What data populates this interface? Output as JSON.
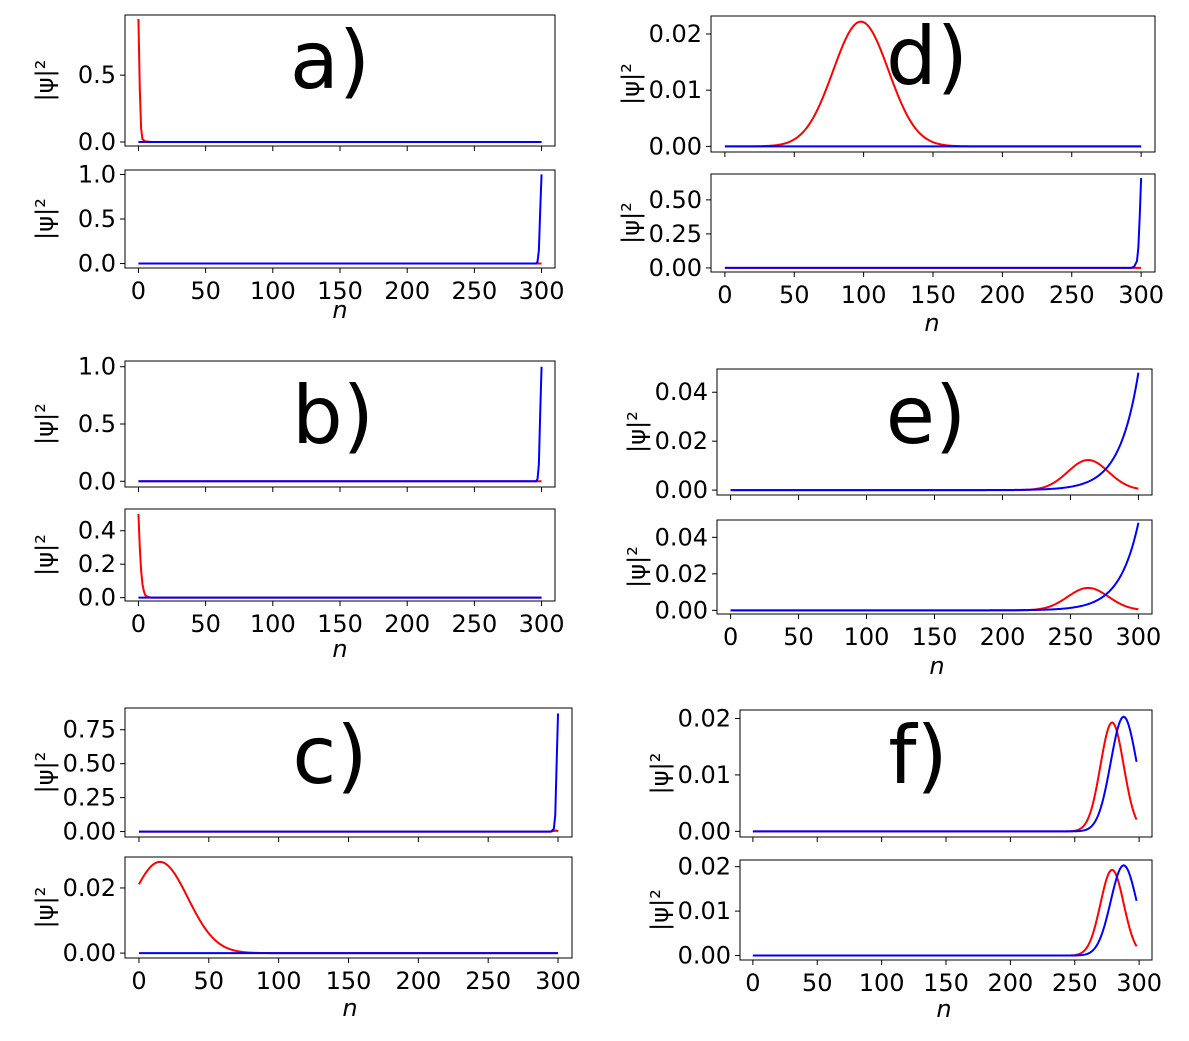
{
  "colors": {
    "red": "#ff0000",
    "blue": "#0000ff",
    "axis": "#000000"
  },
  "ylabel": "|ψ|²",
  "xlabel": "n",
  "chart_data": [
    {
      "type": "line",
      "panel": "a)",
      "subplots": [
        {
          "ylim": [
            -0.03,
            0.95
          ],
          "yticks": [
            "0.0",
            "0.5"
          ],
          "yticks_values": [
            0,
            0.5
          ],
          "xticks": [],
          "series": [
            {
              "name": "red",
              "color": "#ff0000",
              "points": [
                [
                  0,
                  0.92
                ],
                [
                  1,
                  0.4
                ],
                [
                  2,
                  0.1
                ],
                [
                  3,
                  0.02
                ],
                [
                  5,
                  0.005
                ],
                [
                  10,
                  0
                ],
                [
                  300,
                  0
                ]
              ]
            },
            {
              "name": "blue",
              "color": "#0000ff",
              "points": [
                [
                  0,
                  0
                ],
                [
                  300,
                  0
                ]
              ]
            }
          ]
        },
        {
          "ylim": [
            -0.05,
            1.05
          ],
          "yticks": [
            "0.0",
            "0.5",
            "1.0"
          ],
          "yticks_values": [
            0,
            0.5,
            1.0
          ],
          "xticks": [
            "0",
            "50",
            "100",
            "150",
            "200",
            "250",
            "300"
          ],
          "xticks_values": [
            0,
            50,
            100,
            150,
            200,
            250,
            300
          ],
          "series": [
            {
              "name": "red",
              "color": "#ff0000",
              "points": [
                [
                  0,
                  0
                ],
                [
                  300,
                  0
                ]
              ]
            },
            {
              "name": "blue",
              "color": "#0000ff",
              "points": [
                [
                  0,
                  0
                ],
                [
                  296,
                  0
                ],
                [
                  297,
                  0.02
                ],
                [
                  298,
                  0.15
                ],
                [
                  299,
                  0.6
                ],
                [
                  300,
                  1.0
                ]
              ]
            }
          ]
        }
      ]
    },
    {
      "type": "line",
      "panel": "b)",
      "subplots": [
        {
          "ylim": [
            -0.05,
            1.05
          ],
          "yticks": [
            "0.0",
            "0.5",
            "1.0"
          ],
          "yticks_values": [
            0,
            0.5,
            1.0
          ],
          "xticks": [],
          "series": [
            {
              "name": "red",
              "color": "#ff0000",
              "points": [
                [
                  0,
                  0
                ],
                [
                  300,
                  0
                ]
              ]
            },
            {
              "name": "blue",
              "color": "#0000ff",
              "points": [
                [
                  0,
                  0
                ],
                [
                  296,
                  0
                ],
                [
                  297,
                  0.02
                ],
                [
                  298,
                  0.15
                ],
                [
                  299,
                  0.6
                ],
                [
                  300,
                  1.0
                ]
              ]
            }
          ]
        },
        {
          "ylim": [
            -0.02,
            0.53
          ],
          "yticks": [
            "0.0",
            "0.2",
            "0.4"
          ],
          "yticks_values": [
            0,
            0.2,
            0.4
          ],
          "xticks": [
            "0",
            "50",
            "100",
            "150",
            "200",
            "250",
            "300"
          ],
          "xticks_values": [
            0,
            50,
            100,
            150,
            200,
            250,
            300
          ],
          "series": [
            {
              "name": "red",
              "color": "#ff0000",
              "points": [
                [
                  0,
                  0.5
                ],
                [
                  1,
                  0.3
                ],
                [
                  2,
                  0.16
                ],
                [
                  3,
                  0.08
                ],
                [
                  4,
                  0.04
                ],
                [
                  5,
                  0.015
                ],
                [
                  7,
                  0.004
                ],
                [
                  10,
                  0
                ],
                [
                  300,
                  0
                ]
              ]
            },
            {
              "name": "blue",
              "color": "#0000ff",
              "points": [
                [
                  0,
                  0
                ],
                [
                  300,
                  0
                ]
              ]
            }
          ]
        }
      ]
    },
    {
      "type": "line",
      "panel": "c)",
      "subplots": [
        {
          "ylim": [
            -0.04,
            0.91
          ],
          "yticks": [
            "0.00",
            "0.25",
            "0.50",
            "0.75"
          ],
          "yticks_values": [
            0,
            0.25,
            0.5,
            0.75
          ],
          "xticks": [],
          "series": [
            {
              "name": "red",
              "color": "#ff0000",
              "points": [
                [
                  0,
                  0
                ],
                [
                  294,
                  0
                ],
                [
                  297,
                  0.004
                ],
                [
                  299,
                  0.008
                ],
                [
                  300,
                  0
                ]
              ]
            },
            {
              "name": "blue",
              "color": "#0000ff",
              "points": [
                [
                  0,
                  0
                ],
                [
                  295,
                  0
                ],
                [
                  297,
                  0.02
                ],
                [
                  298,
                  0.12
                ],
                [
                  299,
                  0.5
                ],
                [
                  300,
                  0.87
                ]
              ]
            }
          ]
        },
        {
          "ylim": [
            -0.0015,
            0.0295
          ],
          "yticks": [
            "0.00",
            "0.02"
          ],
          "yticks_values": [
            0,
            0.02
          ],
          "xticks": [
            "0",
            "50",
            "100",
            "150",
            "200",
            "250",
            "300"
          ],
          "xticks_values": [
            0,
            50,
            100,
            150,
            200,
            250,
            300
          ],
          "series": [
            {
              "name": "red",
              "color": "#ff0000",
              "curve": {
                "kind": "gauss",
                "amp": 0.028,
                "mu": 15,
                "sigma": 20,
                "from": 0,
                "to": 300
              }
            },
            {
              "name": "blue",
              "color": "#0000ff",
              "points": [
                [
                  0,
                  0
                ],
                [
                  300,
                  0
                ]
              ]
            }
          ]
        }
      ]
    },
    {
      "type": "line",
      "panel": "d)",
      "subplots": [
        {
          "ylim": [
            -0.001,
            0.0232
          ],
          "yticks": [
            "0.00",
            "0.01",
            "0.02"
          ],
          "yticks_values": [
            0,
            0.01,
            0.02
          ],
          "xticks": [],
          "series": [
            {
              "name": "red",
              "color": "#ff0000",
              "curve": {
                "kind": "gauss",
                "amp": 0.0222,
                "mu": 98,
                "sigma": 20,
                "from": 0,
                "to": 300
              }
            },
            {
              "name": "blue",
              "color": "#0000ff",
              "points": [
                [
                  0,
                  0
                ],
                [
                  300,
                  0
                ]
              ]
            }
          ]
        },
        {
          "ylim": [
            -0.03,
            0.69
          ],
          "yticks": [
            "0.00",
            "0.25",
            "0.50"
          ],
          "yticks_values": [
            0,
            0.25,
            0.5
          ],
          "xticks": [
            "0",
            "50",
            "100",
            "150",
            "200",
            "250",
            "300"
          ],
          "xticks_values": [
            0,
            50,
            100,
            150,
            200,
            250,
            300
          ],
          "series": [
            {
              "name": "red",
              "color": "#ff0000",
              "points": [
                [
                  0,
                  0
                ],
                [
                  300,
                  0
                ]
              ]
            },
            {
              "name": "blue",
              "color": "#0000ff",
              "points": [
                [
                  0,
                  0
                ],
                [
                  293,
                  0
                ],
                [
                  295,
                  0.01
                ],
                [
                  297,
                  0.05
                ],
                [
                  298,
                  0.15
                ],
                [
                  299,
                  0.38
                ],
                [
                  300,
                  0.66
                ]
              ]
            }
          ]
        }
      ]
    },
    {
      "type": "line",
      "panel": "e)",
      "subplots": [
        {
          "ylim": [
            -0.002,
            0.0495
          ],
          "yticks": [
            "0.00",
            "0.02",
            "0.04"
          ],
          "yticks_values": [
            0,
            0.02,
            0.04
          ],
          "xticks": [],
          "series": [
            {
              "name": "red",
              "color": "#ff0000",
              "curve": {
                "kind": "gauss",
                "amp": 0.0123,
                "mu": 263,
                "sigma": 15,
                "from": 0,
                "to": 300
              }
            },
            {
              "name": "blue",
              "color": "#0000ff",
              "curve": {
                "kind": "exp",
                "amp": 0.048,
                "end": 300,
                "tau": 14,
                "from": 0,
                "to": 300
              }
            }
          ]
        },
        {
          "ylim": [
            -0.002,
            0.0495
          ],
          "yticks": [
            "0.00",
            "0.02",
            "0.04"
          ],
          "yticks_values": [
            0,
            0.02,
            0.04
          ],
          "xticks": [
            "0",
            "50",
            "100",
            "150",
            "200",
            "250",
            "300"
          ],
          "xticks_values": [
            0,
            50,
            100,
            150,
            200,
            250,
            300
          ],
          "series": [
            {
              "name": "red",
              "color": "#ff0000",
              "curve": {
                "kind": "gauss",
                "amp": 0.0123,
                "mu": 263,
                "sigma": 15,
                "from": 0,
                "to": 300
              }
            },
            {
              "name": "blue",
              "color": "#0000ff",
              "curve": {
                "kind": "exp",
                "amp": 0.048,
                "end": 300,
                "tau": 14,
                "from": 0,
                "to": 300
              }
            }
          ]
        }
      ]
    },
    {
      "type": "line",
      "panel": "f)",
      "subplots": [
        {
          "ylim": [
            -0.001,
            0.0215
          ],
          "yticks": [
            "0.00",
            "0.01",
            "0.02"
          ],
          "yticks_values": [
            0,
            0.01,
            0.02
          ],
          "xticks": [],
          "series": [
            {
              "name": "red",
              "color": "#ff0000",
              "curve": {
                "kind": "gauss",
                "amp": 0.0193,
                "mu": 279,
                "sigma": 9,
                "from": 0,
                "to": 298
              }
            },
            {
              "name": "blue",
              "color": "#0000ff",
              "curve": {
                "kind": "gauss",
                "amp": 0.0203,
                "mu": 288,
                "sigma": 10,
                "from": 0,
                "to": 298
              }
            }
          ]
        },
        {
          "ylim": [
            -0.001,
            0.0215
          ],
          "yticks": [
            "0.00",
            "0.01",
            "0.02"
          ],
          "yticks_values": [
            0,
            0.01,
            0.02
          ],
          "xticks": [
            "0",
            "50",
            "100",
            "150",
            "200",
            "250",
            "300"
          ],
          "xticks_values": [
            0,
            50,
            100,
            150,
            200,
            250,
            300
          ],
          "series": [
            {
              "name": "red",
              "color": "#ff0000",
              "curve": {
                "kind": "gauss",
                "amp": 0.0193,
                "mu": 279,
                "sigma": 9,
                "from": 0,
                "to": 298
              }
            },
            {
              "name": "blue",
              "color": "#0000ff",
              "curve": {
                "kind": "gauss",
                "amp": 0.0203,
                "mu": 288,
                "sigma": 10,
                "from": 0,
                "to": 298
              }
            }
          ]
        }
      ]
    }
  ]
}
